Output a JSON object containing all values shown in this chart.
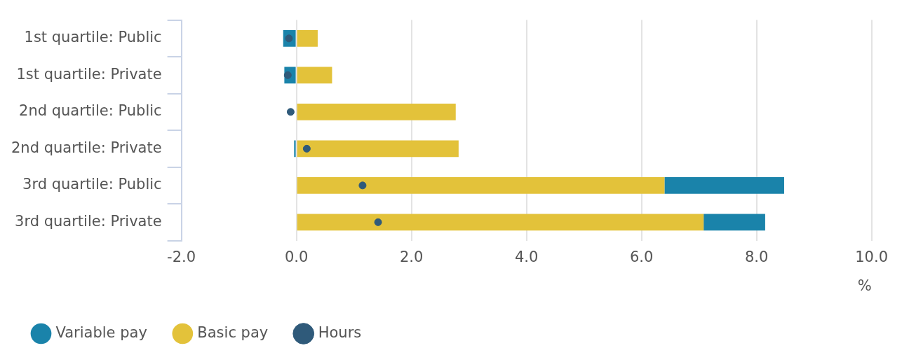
{
  "chart_data": {
    "type": "bar",
    "orientation": "horizontal",
    "stacked": true,
    "xlabel": "%",
    "categories": [
      "1st quartile: Public",
      "1st quartile: Private",
      "2nd quartile: Public",
      "2nd quartile: Private",
      "3rd quartile: Public",
      "3rd quartile: Private"
    ],
    "series": [
      {
        "name": "Basic pay",
        "color": "#e3c23a",
        "values": [
          0.37,
          0.62,
          2.77,
          2.82,
          6.4,
          7.08
        ]
      },
      {
        "name": "Variable pay",
        "color": "#1a83aa",
        "values": [
          -0.23,
          -0.21,
          0,
          -0.04,
          2.08,
          1.07
        ]
      },
      {
        "name": "Hours",
        "type": "scatter",
        "color": "#2f5a7a",
        "marker": "circle",
        "values": [
          -0.13,
          -0.15,
          -0.1,
          0.18,
          1.15,
          1.42
        ]
      }
    ],
    "xlim": [
      -2,
      10
    ],
    "xticks": [
      {
        "value": -2,
        "label": "-2.0"
      },
      {
        "value": 0,
        "label": "0.0"
      },
      {
        "value": 2,
        "label": "2.0"
      },
      {
        "value": 4,
        "label": "4.0"
      },
      {
        "value": 6,
        "label": "6.0"
      },
      {
        "value": 8,
        "label": "8.0"
      },
      {
        "value": 10,
        "label": "10.0"
      }
    ],
    "grid": "x",
    "legend": "bottom"
  }
}
